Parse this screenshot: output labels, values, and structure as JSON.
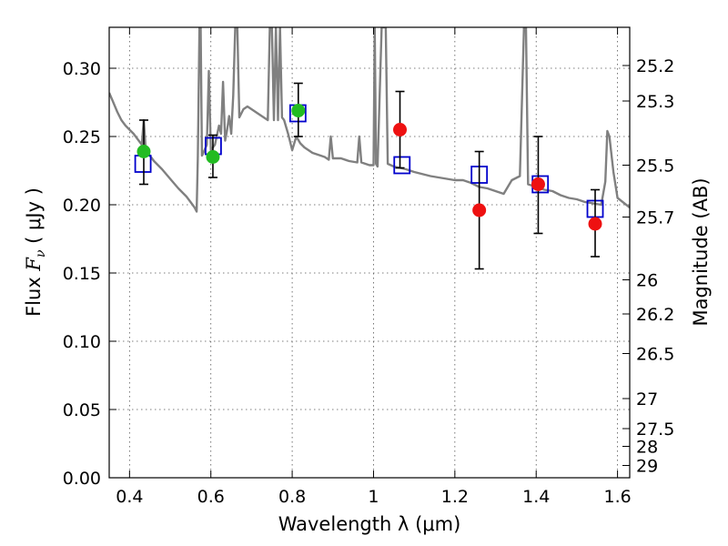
{
  "chart_data": {
    "type": "scatter",
    "xlabel": "Wavelength  λ (μm)",
    "ylabel": "Flux  F_ν  ( μJy )",
    "ylabel_right": "Magnitude (AB)",
    "xlim": [
      0.35,
      1.63
    ],
    "ylim": [
      0.0,
      0.33
    ],
    "grid": true,
    "x_ticks": [
      0.4,
      0.6,
      0.8,
      1.0,
      1.2,
      1.4,
      1.6
    ],
    "x_tick_labels": [
      "0.4",
      "0.6",
      "0.8",
      "1",
      "1.2",
      "1.4",
      "1.6"
    ],
    "y_ticks": [
      0.0,
      0.05,
      0.1,
      0.15,
      0.2,
      0.25,
      0.3
    ],
    "y_tick_labels": [
      "0.00",
      "0.05",
      "0.10",
      "0.15",
      "0.20",
      "0.25",
      "0.30"
    ],
    "right_ticks": [
      {
        "label": "25.2",
        "flux": 0.302
      },
      {
        "label": "25.3",
        "flux": 0.276
      },
      {
        "label": "25.5",
        "flux": 0.229
      },
      {
        "label": "25.7",
        "flux": 0.191
      },
      {
        "label": "26",
        "flux": 0.145
      },
      {
        "label": "26.2",
        "flux": 0.12
      },
      {
        "label": "26.5",
        "flux": 0.091
      },
      {
        "label": "27",
        "flux": 0.058
      },
      {
        "label": "27.5",
        "flux": 0.036
      },
      {
        "label": "28",
        "flux": 0.023
      },
      {
        "label": "29",
        "flux": 0.009
      }
    ],
    "model_spectrum": [
      [
        0.35,
        0.282
      ],
      [
        0.36,
        0.275
      ],
      [
        0.37,
        0.268
      ],
      [
        0.38,
        0.262
      ],
      [
        0.39,
        0.258
      ],
      [
        0.4,
        0.255
      ],
      [
        0.41,
        0.252
      ],
      [
        0.42,
        0.248
      ],
      [
        0.43,
        0.244
      ],
      [
        0.435,
        0.262
      ],
      [
        0.44,
        0.24
      ],
      [
        0.45,
        0.236
      ],
      [
        0.46,
        0.232
      ],
      [
        0.48,
        0.226
      ],
      [
        0.5,
        0.219
      ],
      [
        0.52,
        0.212
      ],
      [
        0.54,
        0.206
      ],
      [
        0.55,
        0.202
      ],
      [
        0.56,
        0.198
      ],
      [
        0.565,
        0.195
      ],
      [
        0.568,
        0.235
      ],
      [
        0.572,
        0.33
      ],
      [
        0.575,
        0.33
      ],
      [
        0.578,
        0.236
      ],
      [
        0.58,
        0.237
      ],
      [
        0.59,
        0.244
      ],
      [
        0.595,
        0.298
      ],
      [
        0.6,
        0.24
      ],
      [
        0.61,
        0.244
      ],
      [
        0.62,
        0.258
      ],
      [
        0.625,
        0.252
      ],
      [
        0.63,
        0.29
      ],
      [
        0.635,
        0.247
      ],
      [
        0.64,
        0.255
      ],
      [
        0.645,
        0.265
      ],
      [
        0.65,
        0.252
      ],
      [
        0.655,
        0.28
      ],
      [
        0.66,
        0.33
      ],
      [
        0.665,
        0.33
      ],
      [
        0.67,
        0.264
      ],
      [
        0.68,
        0.27
      ],
      [
        0.69,
        0.272
      ],
      [
        0.7,
        0.27
      ],
      [
        0.72,
        0.266
      ],
      [
        0.73,
        0.264
      ],
      [
        0.74,
        0.262
      ],
      [
        0.745,
        0.33
      ],
      [
        0.75,
        0.33
      ],
      [
        0.755,
        0.262
      ],
      [
        0.76,
        0.33
      ],
      [
        0.765,
        0.262
      ],
      [
        0.77,
        0.33
      ],
      [
        0.775,
        0.264
      ],
      [
        0.78,
        0.262
      ],
      [
        0.79,
        0.252
      ],
      [
        0.8,
        0.24
      ],
      [
        0.81,
        0.25
      ],
      [
        0.82,
        0.245
      ],
      [
        0.83,
        0.242
      ],
      [
        0.84,
        0.24
      ],
      [
        0.85,
        0.238
      ],
      [
        0.86,
        0.237
      ],
      [
        0.87,
        0.236
      ],
      [
        0.88,
        0.235
      ],
      [
        0.89,
        0.233
      ],
      [
        0.895,
        0.25
      ],
      [
        0.9,
        0.234
      ],
      [
        0.92,
        0.234
      ],
      [
        0.94,
        0.232
      ],
      [
        0.96,
        0.231
      ],
      [
        0.965,
        0.25
      ],
      [
        0.97,
        0.231
      ],
      [
        0.99,
        0.229
      ],
      [
        1.0,
        0.229
      ],
      [
        1.003,
        0.33
      ],
      [
        1.006,
        0.23
      ],
      [
        1.01,
        0.228
      ],
      [
        1.02,
        0.33
      ],
      [
        1.03,
        0.33
      ],
      [
        1.035,
        0.23
      ],
      [
        1.05,
        0.228
      ],
      [
        1.08,
        0.226
      ],
      [
        1.1,
        0.224
      ],
      [
        1.14,
        0.221
      ],
      [
        1.18,
        0.219
      ],
      [
        1.2,
        0.218
      ],
      [
        1.22,
        0.218
      ],
      [
        1.24,
        0.216
      ],
      [
        1.26,
        0.213
      ],
      [
        1.28,
        0.212
      ],
      [
        1.3,
        0.21
      ],
      [
        1.32,
        0.208
      ],
      [
        1.34,
        0.218
      ],
      [
        1.36,
        0.221
      ],
      [
        1.37,
        0.33
      ],
      [
        1.375,
        0.33
      ],
      [
        1.38,
        0.215
      ],
      [
        1.4,
        0.213
      ],
      [
        1.42,
        0.211
      ],
      [
        1.44,
        0.21
      ],
      [
        1.46,
        0.207
      ],
      [
        1.48,
        0.205
      ],
      [
        1.5,
        0.204
      ],
      [
        1.52,
        0.202
      ],
      [
        1.54,
        0.201
      ],
      [
        1.56,
        0.2
      ],
      [
        1.57,
        0.217
      ],
      [
        1.575,
        0.254
      ],
      [
        1.58,
        0.25
      ],
      [
        1.59,
        0.224
      ],
      [
        1.6,
        0.205
      ],
      [
        1.63,
        0.198
      ]
    ],
    "model_photometry": [
      {
        "x": 0.433,
        "y": 0.23
      },
      {
        "x": 0.606,
        "y": 0.243
      },
      {
        "x": 0.814,
        "y": 0.267
      },
      {
        "x": 1.07,
        "y": 0.229
      },
      {
        "x": 1.26,
        "y": 0.222
      },
      {
        "x": 1.41,
        "y": 0.215
      },
      {
        "x": 1.545,
        "y": 0.197
      }
    ],
    "observed": [
      {
        "x": 0.435,
        "y": 0.239,
        "err_lo": 0.215,
        "err_hi": 0.262,
        "color": "#22bb22"
      },
      {
        "x": 0.605,
        "y": 0.235,
        "err_lo": 0.22,
        "err_hi": 0.251,
        "color": "#22bb22"
      },
      {
        "x": 0.815,
        "y": 0.269,
        "err_lo": 0.25,
        "err_hi": 0.289,
        "color": "#22bb22"
      },
      {
        "x": 1.065,
        "y": 0.255,
        "err_lo": 0.227,
        "err_hi": 0.283,
        "color": "#ee1111"
      },
      {
        "x": 1.26,
        "y": 0.196,
        "err_lo": 0.153,
        "err_hi": 0.239,
        "color": "#ee1111"
      },
      {
        "x": 1.405,
        "y": 0.215,
        "err_lo": 0.179,
        "err_hi": 0.25,
        "color": "#ee1111"
      },
      {
        "x": 1.545,
        "y": 0.186,
        "err_lo": 0.162,
        "err_hi": 0.211,
        "color": "#ee1111"
      }
    ],
    "colors": {
      "spectrum": "#808080",
      "model_box": "#0000cc",
      "errorbar": "#000000",
      "grid": "#555555"
    }
  }
}
